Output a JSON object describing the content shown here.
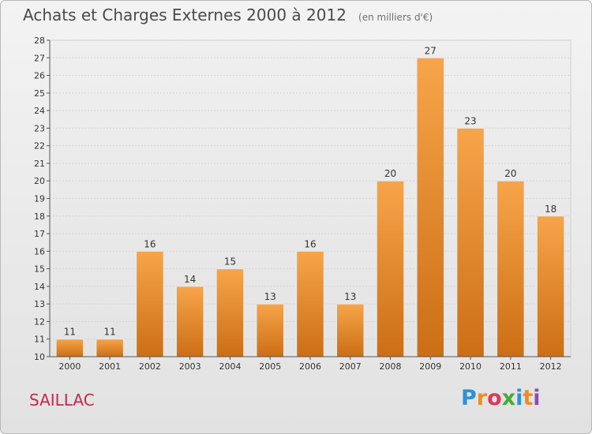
{
  "header": {
    "title": "Achats et Charges Externes 2000 à 2012",
    "subtitle": "(en milliers d'€)"
  },
  "town": "SAILLAC",
  "logo": {
    "letters": [
      "P",
      "r",
      "o",
      "x",
      "i",
      "t",
      "i"
    ],
    "colors": [
      "#2f8fd8",
      "#f08c1c",
      "#e0365a",
      "#45a93a",
      "#2f8fd8",
      "#f08c1c",
      "#8b4fb8"
    ]
  },
  "chart_data": {
    "type": "bar",
    "title": "Achats et Charges Externes 2000 à 2012",
    "subtitle": "(en milliers d'€)",
    "categories": [
      "2000",
      "2001",
      "2002",
      "2003",
      "2004",
      "2005",
      "2006",
      "2007",
      "2008",
      "2009",
      "2010",
      "2011",
      "2012"
    ],
    "values": [
      11,
      11,
      16,
      14,
      15,
      13,
      16,
      13,
      20,
      27,
      23,
      20,
      18
    ],
    "ylim": [
      10,
      28
    ],
    "yticks": [
      10,
      11,
      12,
      13,
      14,
      15,
      16,
      17,
      18,
      19,
      20,
      21,
      22,
      23,
      24,
      25,
      26,
      27,
      28
    ],
    "grid": true,
    "bar_color": "#f0932f"
  }
}
